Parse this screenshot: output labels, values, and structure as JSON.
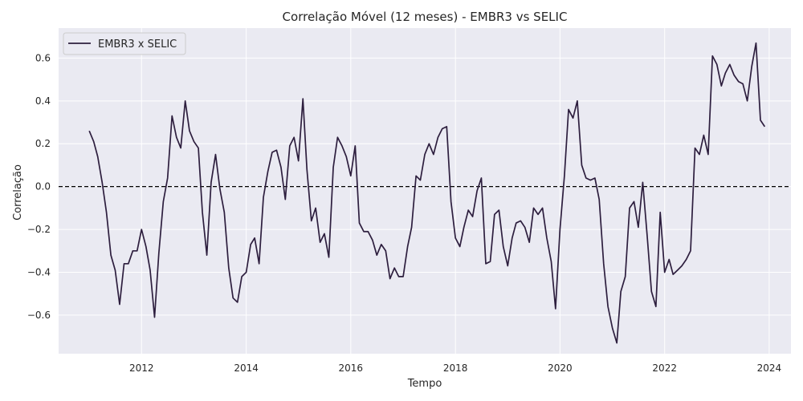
{
  "chart_data": {
    "type": "line",
    "title": "Correlação Móvel (12 meses) - EMBR3 vs SELIC",
    "xlabel": "Tempo",
    "ylabel": "Correlação",
    "xlim": [
      "2010-06-01",
      "2024-06-01"
    ],
    "ylim": [
      -0.78,
      0.74
    ],
    "x_ticks": [
      "2012",
      "2014",
      "2016",
      "2018",
      "2020",
      "2022",
      "2024"
    ],
    "y_ticks": [
      "−0.6",
      "−0.4",
      "−0.2",
      "0.0",
      "0.2",
      "0.4",
      "0.6"
    ],
    "grid": true,
    "reference_line": {
      "y": 0,
      "style": "dashed",
      "color": "#000000"
    },
    "legend": {
      "position": "top-left"
    },
    "series": [
      {
        "name": "EMBR3 x SELIC",
        "color": "#2d1e3e",
        "x": [
          "2011-01",
          "2011-02",
          "2011-03",
          "2011-04",
          "2011-05",
          "2011-06",
          "2011-07",
          "2011-08",
          "2011-09",
          "2011-10",
          "2011-11",
          "2011-12",
          "2012-01",
          "2012-02",
          "2012-03",
          "2012-04",
          "2012-05",
          "2012-06",
          "2012-07",
          "2012-08",
          "2012-09",
          "2012-10",
          "2012-11",
          "2012-12",
          "2013-01",
          "2013-02",
          "2013-03",
          "2013-04",
          "2013-05",
          "2013-06",
          "2013-07",
          "2013-08",
          "2013-09",
          "2013-10",
          "2013-11",
          "2013-12",
          "2014-01",
          "2014-02",
          "2014-03",
          "2014-04",
          "2014-05",
          "2014-06",
          "2014-07",
          "2014-08",
          "2014-09",
          "2014-10",
          "2014-11",
          "2014-12",
          "2015-01",
          "2015-02",
          "2015-03",
          "2015-04",
          "2015-05",
          "2015-06",
          "2015-07",
          "2015-08",
          "2015-09",
          "2015-10",
          "2015-11",
          "2015-12",
          "2016-01",
          "2016-02",
          "2016-03",
          "2016-04",
          "2016-05",
          "2016-06",
          "2016-07",
          "2016-08",
          "2016-09",
          "2016-10",
          "2016-11",
          "2016-12",
          "2017-01",
          "2017-02",
          "2017-03",
          "2017-04",
          "2017-05",
          "2017-06",
          "2017-07",
          "2017-08",
          "2017-09",
          "2017-10",
          "2017-11",
          "2017-12",
          "2018-01",
          "2018-02",
          "2018-03",
          "2018-04",
          "2018-05",
          "2018-06",
          "2018-07",
          "2018-08",
          "2018-09",
          "2018-10",
          "2018-11",
          "2018-12",
          "2019-01",
          "2019-02",
          "2019-03",
          "2019-04",
          "2019-05",
          "2019-06",
          "2019-07",
          "2019-08",
          "2019-09",
          "2019-10",
          "2019-11",
          "2019-12",
          "2020-01",
          "2020-02",
          "2020-03",
          "2020-04",
          "2020-05",
          "2020-06",
          "2020-07",
          "2020-08",
          "2020-09",
          "2020-10",
          "2020-11",
          "2020-12",
          "2021-01",
          "2021-02",
          "2021-03",
          "2021-04",
          "2021-05",
          "2021-06",
          "2021-07",
          "2021-08",
          "2021-09",
          "2021-10",
          "2021-11",
          "2021-12",
          "2022-01",
          "2022-02",
          "2022-03",
          "2022-04",
          "2022-05",
          "2022-06",
          "2022-07",
          "2022-08",
          "2022-09",
          "2022-10",
          "2022-11",
          "2022-12",
          "2023-01",
          "2023-02",
          "2023-03",
          "2023-04",
          "2023-05",
          "2023-06",
          "2023-07",
          "2023-08",
          "2023-09",
          "2023-10",
          "2023-11",
          "2023-12"
        ],
        "y": [
          0.26,
          0.21,
          0.14,
          0.02,
          -0.12,
          -0.32,
          -0.39,
          -0.55,
          -0.36,
          -0.36,
          -0.3,
          -0.3,
          -0.2,
          -0.28,
          -0.39,
          -0.61,
          -0.31,
          -0.07,
          0.04,
          0.33,
          0.23,
          0.18,
          0.4,
          0.26,
          0.21,
          0.18,
          -0.12,
          -0.32,
          0.02,
          0.15,
          -0.01,
          -0.12,
          -0.38,
          -0.52,
          -0.54,
          -0.42,
          -0.4,
          -0.27,
          -0.24,
          -0.36,
          -0.05,
          0.07,
          0.16,
          0.17,
          0.09,
          -0.06,
          0.19,
          0.23,
          0.12,
          0.41,
          0.08,
          -0.16,
          -0.1,
          -0.26,
          -0.22,
          -0.33,
          0.09,
          0.23,
          0.19,
          0.14,
          0.05,
          0.19,
          -0.17,
          -0.21,
          -0.21,
          -0.25,
          -0.32,
          -0.27,
          -0.3,
          -0.43,
          -0.38,
          -0.42,
          -0.42,
          -0.28,
          -0.19,
          0.05,
          0.03,
          0.15,
          0.2,
          0.15,
          0.23,
          0.27,
          0.28,
          -0.07,
          -0.24,
          -0.28,
          -0.19,
          -0.11,
          -0.14,
          -0.02,
          0.04,
          -0.36,
          -0.35,
          -0.13,
          -0.11,
          -0.28,
          -0.37,
          -0.24,
          -0.17,
          -0.16,
          -0.19,
          -0.26,
          -0.1,
          -0.13,
          -0.1,
          -0.24,
          -0.35,
          -0.57,
          -0.2,
          0.05,
          0.36,
          0.32,
          0.4,
          0.1,
          0.04,
          0.03,
          0.04,
          -0.06,
          -0.36,
          -0.56,
          -0.66,
          -0.73,
          -0.49,
          -0.42,
          -0.1,
          -0.07,
          -0.19,
          0.02,
          -0.23,
          -0.49,
          -0.56,
          -0.12,
          -0.4,
          -0.34,
          -0.41,
          -0.39,
          -0.37,
          -0.34,
          -0.3,
          0.18,
          0.15,
          0.24,
          0.15,
          0.61,
          0.57,
          0.47,
          0.53,
          0.57,
          0.52,
          0.49,
          0.48,
          0.4,
          0.56,
          0.67,
          0.31,
          0.28
        ]
      }
    ]
  }
}
